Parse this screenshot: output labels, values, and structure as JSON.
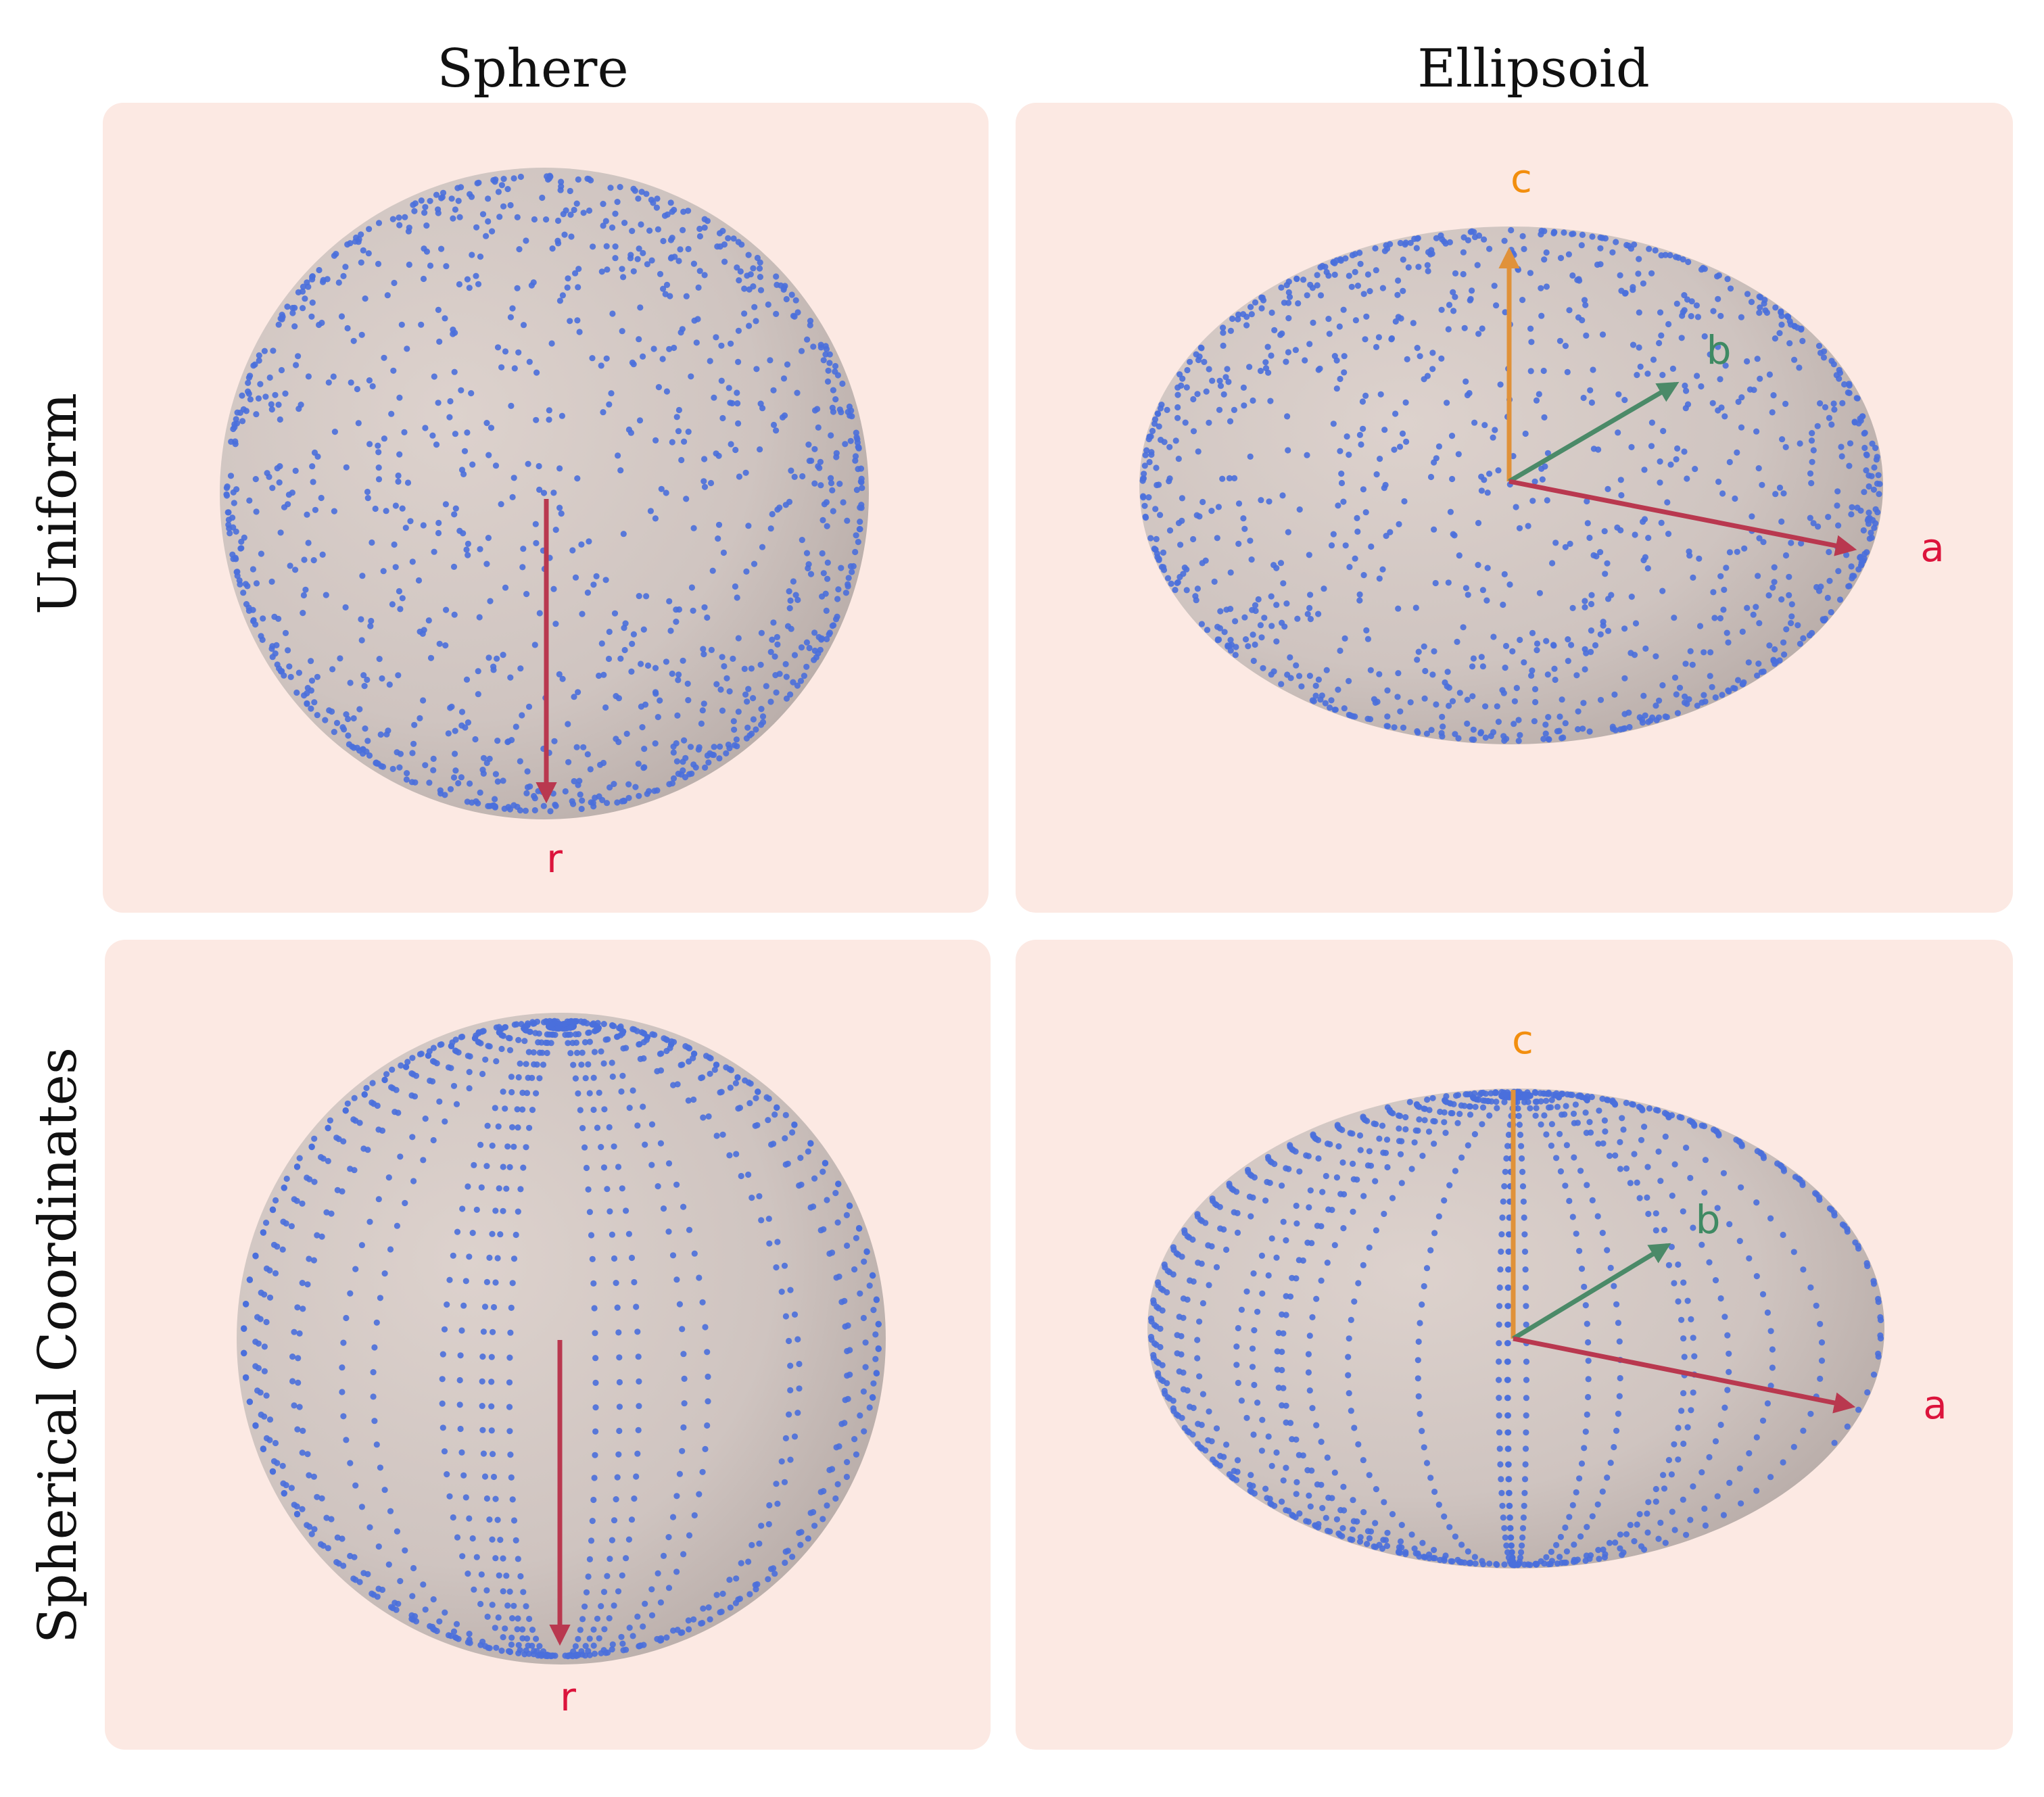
{
  "figure": {
    "column_titles": [
      "Sphere",
      "Ellipsoid"
    ],
    "row_titles": [
      "Uniform",
      "Spherical Coordinates"
    ]
  },
  "panels": [
    {
      "name": "uniform-sphere",
      "shape": "sphere",
      "sampling": "uniform",
      "axes": [
        {
          "label": "r",
          "color": "#dc143c"
        }
      ]
    },
    {
      "name": "uniform-ellipsoid",
      "shape": "ellipsoid",
      "sampling": "uniform",
      "axes": [
        {
          "label": "c",
          "color": "#f28e0e"
        },
        {
          "label": "b",
          "color": "#3f8a63"
        },
        {
          "label": "a",
          "color": "#dc143c"
        }
      ]
    },
    {
      "name": "spherical-sphere",
      "shape": "sphere",
      "sampling": "spherical coordinates",
      "axes": [
        {
          "label": "r",
          "color": "#dc143c"
        }
      ]
    },
    {
      "name": "spherical-ellipsoid",
      "shape": "ellipsoid",
      "sampling": "spherical coordinates",
      "axes": [
        {
          "label": "c",
          "color": "#f28e0e"
        },
        {
          "label": "b",
          "color": "#3f8a63"
        },
        {
          "label": "a",
          "color": "#dc143c"
        }
      ]
    }
  ],
  "colors": {
    "panel_background": "#fce9e3",
    "surface_light": "#ddd2cd",
    "surface_dark": "#b7aba7",
    "points": "#4a6fdc",
    "arrow_red": "#b9384f",
    "arrow_orange": "#e0923a",
    "arrow_green": "#4b8a68"
  }
}
